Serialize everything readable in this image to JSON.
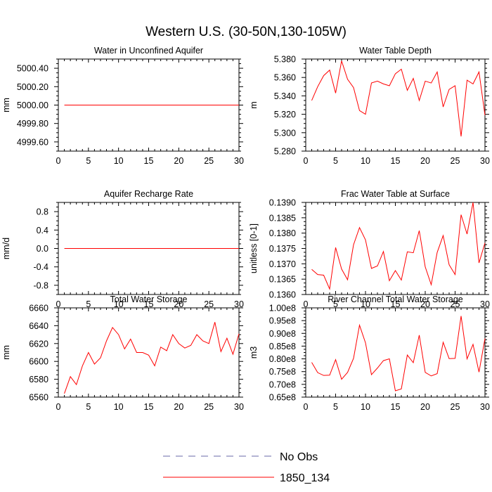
{
  "figure_title": "Western U.S. (30-50N,130-105W)",
  "legend": {
    "entries": [
      {
        "label": "No Obs",
        "style": "dashed",
        "color": "#6a6aa8"
      },
      {
        "label": "1850_134",
        "style": "solid",
        "color": "#ff0000"
      }
    ]
  },
  "chart_data": [
    {
      "type": "line",
      "title": "Water in Unconfined Aquifer",
      "xlabel": "",
      "ylabel": "mm",
      "xlim": [
        0,
        30
      ],
      "ylim": [
        4999.5,
        5000.5
      ],
      "xticks": [
        0,
        5,
        10,
        15,
        20,
        25,
        30
      ],
      "yticks": [
        4999.6,
        4999.8,
        5000.0,
        5000.2,
        5000.4
      ],
      "ytick_labels": [
        "4999.60",
        "4999.80",
        "5000.00",
        "5000.20",
        "5000.40"
      ],
      "grid": false,
      "series": [
        {
          "name": "1850_134",
          "color": "#ff0000",
          "x": [
            1,
            2,
            3,
            4,
            5,
            6,
            7,
            8,
            9,
            10,
            11,
            12,
            13,
            14,
            15,
            16,
            17,
            18,
            19,
            20,
            21,
            22,
            23,
            24,
            25,
            26,
            27,
            28,
            29,
            30
          ],
          "y": [
            5000,
            5000,
            5000,
            5000,
            5000,
            5000,
            5000,
            5000,
            5000,
            5000,
            5000,
            5000,
            5000,
            5000,
            5000,
            5000,
            5000,
            5000,
            5000,
            5000,
            5000,
            5000,
            5000,
            5000,
            5000,
            5000,
            5000,
            5000,
            5000,
            5000
          ]
        }
      ]
    },
    {
      "type": "line",
      "title": "Water Table Depth",
      "xlabel": "",
      "ylabel": "m",
      "xlim": [
        0,
        30
      ],
      "ylim": [
        5.28,
        5.38
      ],
      "xticks": [
        0,
        5,
        10,
        15,
        20,
        25,
        30
      ],
      "yticks": [
        5.28,
        5.3,
        5.32,
        5.34,
        5.36,
        5.38
      ],
      "ytick_labels": [
        "5.280",
        "5.300",
        "5.320",
        "5.340",
        "5.360",
        "5.380"
      ],
      "grid": false,
      "series": [
        {
          "name": "1850_134",
          "color": "#ff0000",
          "x": [
            1,
            2,
            3,
            4,
            5,
            6,
            7,
            8,
            9,
            10,
            11,
            12,
            13,
            14,
            15,
            16,
            17,
            18,
            19,
            20,
            21,
            22,
            23,
            24,
            25,
            26,
            27,
            28,
            29,
            30
          ],
          "y": [
            5.335,
            5.35,
            5.362,
            5.368,
            5.343,
            5.378,
            5.358,
            5.349,
            5.324,
            5.32,
            5.354,
            5.356,
            5.353,
            5.351,
            5.364,
            5.369,
            5.346,
            5.359,
            5.335,
            5.356,
            5.354,
            5.366,
            5.328,
            5.347,
            5.351,
            5.296,
            5.357,
            5.353,
            5.366,
            5.319
          ]
        }
      ]
    },
    {
      "type": "line",
      "title": "Aquifer Recharge Rate",
      "xlabel": "",
      "ylabel": "mm/d",
      "xlim": [
        0,
        30
      ],
      "ylim": [
        -1.0,
        1.0
      ],
      "xticks": [
        0,
        5,
        10,
        15,
        20,
        25,
        30
      ],
      "yticks": [
        -0.8,
        -0.4,
        0.0,
        0.4,
        0.8
      ],
      "ytick_labels": [
        "-0.8",
        "-0.4",
        "0.0",
        "0.4",
        "0.8"
      ],
      "grid": false,
      "series": [
        {
          "name": "1850_134",
          "color": "#ff0000",
          "x": [
            1,
            2,
            3,
            4,
            5,
            6,
            7,
            8,
            9,
            10,
            11,
            12,
            13,
            14,
            15,
            16,
            17,
            18,
            19,
            20,
            21,
            22,
            23,
            24,
            25,
            26,
            27,
            28,
            29,
            30
          ],
          "y": [
            0,
            0,
            0,
            0,
            0,
            0,
            0,
            0,
            0,
            0,
            0,
            0,
            0,
            0,
            0,
            0,
            0,
            0,
            0,
            0,
            0,
            0,
            0,
            0,
            0,
            0,
            0,
            0,
            0,
            0
          ]
        }
      ]
    },
    {
      "type": "line",
      "title": "Frac Water Table at Surface",
      "xlabel": "",
      "ylabel": "unitless [0-1]",
      "xlim": [
        0,
        30
      ],
      "ylim": [
        0.136,
        0.139
      ],
      "xticks": [
        0,
        5,
        10,
        15,
        20,
        25,
        30
      ],
      "yticks": [
        0.136,
        0.1365,
        0.137,
        0.1375,
        0.138,
        0.1385,
        0.139
      ],
      "ytick_labels": [
        "0.1360",
        "0.1365",
        "0.1370",
        "0.1375",
        "0.1380",
        "0.1385",
        "0.1390"
      ],
      "grid": false,
      "series": [
        {
          "name": "1850_134",
          "color": "#ff0000",
          "x": [
            1,
            2,
            3,
            4,
            5,
            6,
            7,
            8,
            9,
            10,
            11,
            12,
            13,
            14,
            15,
            16,
            17,
            18,
            19,
            20,
            21,
            22,
            23,
            24,
            25,
            26,
            27,
            28,
            29,
            30
          ],
          "y": [
            0.13682,
            0.13665,
            0.13663,
            0.13618,
            0.13753,
            0.13683,
            0.13648,
            0.13762,
            0.13818,
            0.13778,
            0.13685,
            0.13693,
            0.1374,
            0.13645,
            0.13678,
            0.13647,
            0.13739,
            0.13736,
            0.13808,
            0.1369,
            0.13632,
            0.13737,
            0.13792,
            0.13697,
            0.13665,
            0.1386,
            0.13797,
            0.139,
            0.13703,
            0.13768
          ]
        }
      ]
    },
    {
      "type": "line",
      "title": "Total Water Storage",
      "xlabel": "",
      "ylabel": "mm",
      "xlim": [
        0,
        30
      ],
      "ylim": [
        6560,
        6660
      ],
      "xticks": [
        0,
        5,
        10,
        15,
        20,
        25,
        30
      ],
      "yticks": [
        6560,
        6580,
        6600,
        6620,
        6640,
        6660
      ],
      "ytick_labels": [
        "6560",
        "6580",
        "6600",
        "6620",
        "6640",
        "6660"
      ],
      "grid": false,
      "series": [
        {
          "name": "1850_134",
          "color": "#ff0000",
          "x": [
            1,
            2,
            3,
            4,
            5,
            6,
            7,
            8,
            9,
            10,
            11,
            12,
            13,
            14,
            15,
            16,
            17,
            18,
            19,
            20,
            21,
            22,
            23,
            24,
            25,
            26,
            27,
            28,
            29,
            30
          ],
          "y": [
            6564,
            6583,
            6574,
            6595,
            6610,
            6597,
            6604,
            6623,
            6638,
            6630,
            6614,
            6625,
            6610,
            6610,
            6607,
            6595,
            6616,
            6612,
            6630,
            6620,
            6615,
            6618,
            6630,
            6623,
            6620,
            6644,
            6611,
            6626,
            6608,
            6631
          ]
        }
      ]
    },
    {
      "type": "line",
      "title": "River Channel Total Water Storage",
      "xlabel": "",
      "ylabel": "m3",
      "xlim": [
        0,
        30
      ],
      "ylim": [
        65000000.0,
        100000000.0
      ],
      "xticks": [
        0,
        5,
        10,
        15,
        20,
        25,
        30
      ],
      "yticks": [
        65000000.0,
        70000000.0,
        75000000.0,
        80000000.0,
        85000000.0,
        90000000.0,
        95000000.0,
        100000000.0
      ],
      "ytick_labels": [
        "0.65e8",
        "0.70e8",
        "0.75e8",
        "0.80e8",
        "0.85e8",
        "0.90e8",
        "0.95e8",
        "1.00e8"
      ],
      "grid": false,
      "series": [
        {
          "name": "1850_134",
          "color": "#ff0000",
          "x": [
            1,
            2,
            3,
            4,
            5,
            6,
            7,
            8,
            9,
            10,
            11,
            12,
            13,
            14,
            15,
            16,
            17,
            18,
            19,
            20,
            21,
            22,
            23,
            24,
            25,
            26,
            27,
            28,
            29,
            30
          ],
          "y": [
            78600000.0,
            74600000.0,
            73500000.0,
            73600000.0,
            79700000.0,
            72000000.0,
            74700000.0,
            80200000.0,
            93200000.0,
            86300000.0,
            73800000.0,
            76400000.0,
            79300000.0,
            80000000.0,
            67500000.0,
            68200000.0,
            81500000.0,
            78500000.0,
            89300000.0,
            74700000.0,
            73300000.0,
            74200000.0,
            86500000.0,
            80100000.0,
            80200000.0,
            96800000.0,
            80000000.0,
            85700000.0,
            74800000.0,
            88000000.0
          ]
        }
      ]
    }
  ]
}
